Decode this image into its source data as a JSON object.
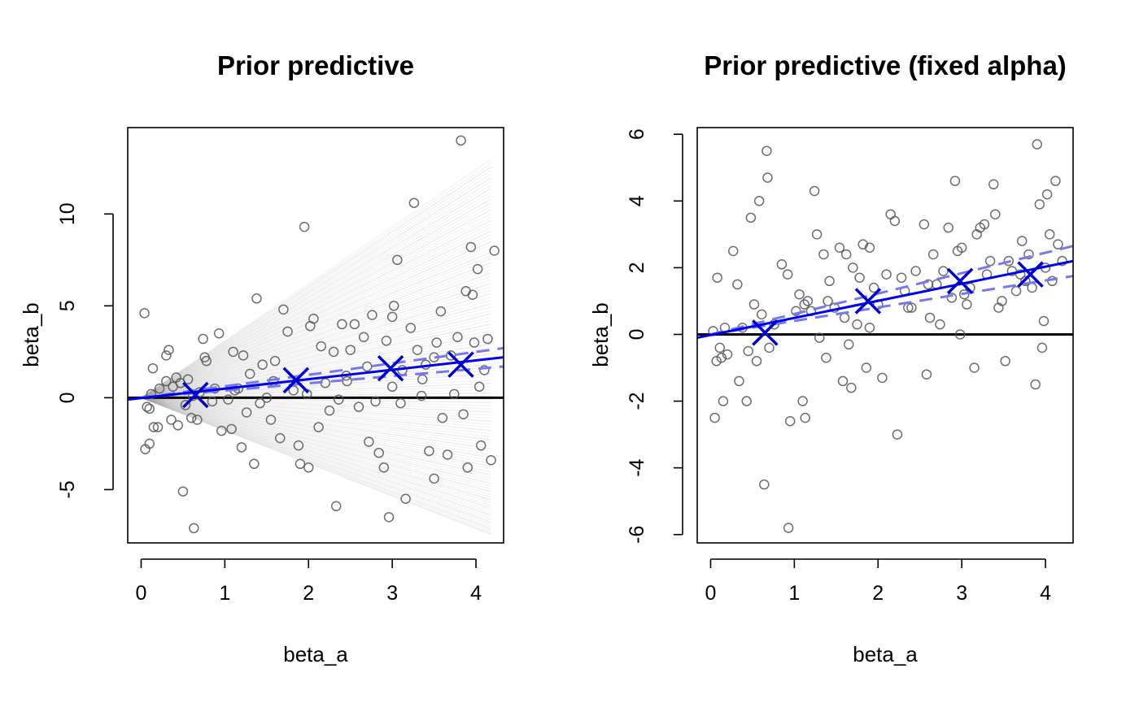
{
  "chart_data": [
    {
      "type": "scatter",
      "title": "Prior predictive",
      "xlabel": "beta_a",
      "ylabel": "beta_b",
      "xlim": [
        -0.16,
        4.33
      ],
      "ylim": [
        -7.9,
        14.7
      ],
      "xticks": [
        0,
        1,
        2,
        3,
        4
      ],
      "yticks": [
        -5,
        0,
        5,
        10
      ],
      "grid": false,
      "legend": "none",
      "colors": {
        "points": "#555555",
        "fit": "#0000ee",
        "band": "#7777ee",
        "marker": "#0000cc",
        "draws": "#999999",
        "zero": "#000000"
      },
      "points": [
        [
          0.04,
          4.6
        ],
        [
          0.07,
          -0.5
        ],
        [
          0.1,
          -0.6
        ],
        [
          0.05,
          -2.8
        ],
        [
          0.1,
          -2.5
        ],
        [
          0.12,
          0.2
        ],
        [
          0.14,
          1.6
        ],
        [
          0.15,
          -1.6
        ],
        [
          0.2,
          -1.6
        ],
        [
          0.22,
          0.5
        ],
        [
          0.3,
          2.3
        ],
        [
          0.3,
          0.9
        ],
        [
          0.33,
          2.6
        ],
        [
          0.36,
          -1.2
        ],
        [
          0.38,
          0.6
        ],
        [
          0.42,
          1.1
        ],
        [
          0.44,
          -1.5
        ],
        [
          0.47,
          0.8
        ],
        [
          0.5,
          -5.1
        ],
        [
          0.53,
          -0.4
        ],
        [
          0.56,
          1.0
        ],
        [
          0.6,
          -1.1
        ],
        [
          0.63,
          -7.1
        ],
        [
          0.67,
          -1.2
        ],
        [
          0.7,
          0.3
        ],
        [
          0.74,
          3.2
        ],
        [
          0.76,
          2.2
        ],
        [
          0.78,
          2.0
        ],
        [
          0.85,
          -0.2
        ],
        [
          0.93,
          3.5
        ],
        [
          0.96,
          -1.8
        ],
        [
          1.04,
          -0.1
        ],
        [
          1.08,
          -1.7
        ],
        [
          1.1,
          2.5
        ],
        [
          1.16,
          0.5
        ],
        [
          1.2,
          -2.7
        ],
        [
          1.22,
          2.3
        ],
        [
          1.26,
          -0.8
        ],
        [
          1.3,
          1.3
        ],
        [
          1.35,
          -3.6
        ],
        [
          1.38,
          5.4
        ],
        [
          1.45,
          1.8
        ],
        [
          1.5,
          0.0
        ],
        [
          1.55,
          -1.2
        ],
        [
          1.6,
          2.0
        ],
        [
          1.66,
          -2.2
        ],
        [
          1.7,
          4.8
        ],
        [
          1.75,
          3.6
        ],
        [
          1.82,
          0.4
        ],
        [
          1.88,
          -2.6
        ],
        [
          1.9,
          -3.6
        ],
        [
          1.95,
          9.3
        ],
        [
          2.0,
          -3.8
        ],
        [
          2.02,
          3.9
        ],
        [
          2.06,
          4.3
        ],
        [
          2.12,
          -1.6
        ],
        [
          2.15,
          2.8
        ],
        [
          2.2,
          0.8
        ],
        [
          2.25,
          -0.7
        ],
        [
          2.3,
          2.5
        ],
        [
          2.33,
          -5.9
        ],
        [
          2.4,
          4.0
        ],
        [
          2.46,
          0.9
        ],
        [
          2.5,
          2.6
        ],
        [
          2.55,
          4.0
        ],
        [
          2.6,
          -0.5
        ],
        [
          2.66,
          3.3
        ],
        [
          2.72,
          -2.4
        ],
        [
          2.76,
          4.5
        ],
        [
          2.8,
          -0.2
        ],
        [
          2.84,
          -3.0
        ],
        [
          2.9,
          -3.8
        ],
        [
          2.93,
          3.1
        ],
        [
          2.96,
          -6.5
        ],
        [
          3.0,
          4.4
        ],
        [
          3.02,
          5.0
        ],
        [
          3.06,
          7.5
        ],
        [
          3.1,
          -0.3
        ],
        [
          3.16,
          -5.5
        ],
        [
          3.22,
          3.8
        ],
        [
          3.26,
          10.6
        ],
        [
          3.3,
          2.6
        ],
        [
          3.35,
          0.1
        ],
        [
          3.4,
          1.8
        ],
        [
          3.44,
          -2.9
        ],
        [
          3.5,
          -4.4
        ],
        [
          3.53,
          3.0
        ],
        [
          3.58,
          4.7
        ],
        [
          3.6,
          -1.1
        ],
        [
          3.66,
          -3.1
        ],
        [
          3.7,
          2.3
        ],
        [
          3.74,
          0.2
        ],
        [
          3.78,
          3.3
        ],
        [
          3.82,
          14.0
        ],
        [
          3.85,
          -0.9
        ],
        [
          3.88,
          5.8
        ],
        [
          3.9,
          -3.8
        ],
        [
          3.94,
          8.2
        ],
        [
          3.98,
          3.0
        ],
        [
          4.02,
          7.0
        ],
        [
          4.06,
          -2.6
        ],
        [
          4.1,
          1.5
        ],
        [
          4.14,
          3.2
        ],
        [
          4.18,
          -3.4
        ],
        [
          4.22,
          8.0
        ],
        [
          3.96,
          5.6
        ],
        [
          3.12,
          1.5
        ],
        [
          2.45,
          1.2
        ],
        [
          1.58,
          0.9
        ],
        [
          0.88,
          0.5
        ],
        [
          3.36,
          1.0
        ],
        [
          2.7,
          1.7
        ],
        [
          1.98,
          0.2
        ],
        [
          1.12,
          0.4
        ],
        [
          4.04,
          0.6
        ],
        [
          3.5,
          2.2
        ],
        [
          2.36,
          -0.1
        ],
        [
          1.42,
          -0.3
        ],
        [
          0.62,
          0.1
        ],
        [
          3.0,
          0.6
        ]
      ],
      "fit_line": {
        "x": [
          -0.16,
          4.33
        ],
        "y": [
          -0.1,
          2.2
        ]
      },
      "band_upper": {
        "x": [
          0.0,
          4.33
        ],
        "y": [
          0.0,
          2.7
        ]
      },
      "band_lower": {
        "x": [
          0.0,
          4.33
        ],
        "y": [
          0.0,
          1.7
        ]
      },
      "x_markers": [
        [
          0.65,
          0.15
        ],
        [
          1.85,
          0.95
        ],
        [
          2.98,
          1.6
        ],
        [
          3.82,
          1.8
        ]
      ],
      "draws": {
        "count": 120,
        "x_end": 4.18,
        "slope_min": -1.78,
        "slope_max": 3.1
      },
      "hline": 0
    },
    {
      "type": "scatter",
      "title": "Prior predictive (fixed alpha)",
      "xlabel": "beta_a",
      "ylabel": "beta_b",
      "xlim": [
        -0.16,
        4.33
      ],
      "ylim": [
        -6.25,
        6.2
      ],
      "xticks": [
        0,
        1,
        2,
        3,
        4
      ],
      "yticks": [
        -6,
        -4,
        -2,
        0,
        2,
        4,
        6
      ],
      "grid": false,
      "legend": "none",
      "colors": {
        "points": "#555555",
        "fit": "#0000ee",
        "band": "#7777ee",
        "marker": "#0000cc",
        "zero": "#000000"
      },
      "points": [
        [
          0.03,
          0.1
        ],
        [
          0.05,
          -2.5
        ],
        [
          0.07,
          -0.8
        ],
        [
          0.08,
          1.7
        ],
        [
          0.11,
          -0.4
        ],
        [
          0.13,
          -0.7
        ],
        [
          0.15,
          -2.0
        ],
        [
          0.17,
          0.2
        ],
        [
          0.2,
          -0.6
        ],
        [
          0.27,
          2.5
        ],
        [
          0.32,
          1.5
        ],
        [
          0.34,
          -1.4
        ],
        [
          0.38,
          0.2
        ],
        [
          0.43,
          -2.0
        ],
        [
          0.45,
          -0.5
        ],
        [
          0.48,
          3.5
        ],
        [
          0.52,
          0.9
        ],
        [
          0.55,
          -0.8
        ],
        [
          0.58,
          4.0
        ],
        [
          0.61,
          0.6
        ],
        [
          0.64,
          -4.5
        ],
        [
          0.67,
          5.5
        ],
        [
          0.68,
          4.7
        ],
        [
          0.7,
          -0.4
        ],
        [
          0.85,
          2.1
        ],
        [
          0.92,
          1.8
        ],
        [
          0.93,
          -5.8
        ],
        [
          0.95,
          -2.6
        ],
        [
          1.02,
          0.7
        ],
        [
          1.06,
          1.2
        ],
        [
          1.1,
          -2.0
        ],
        [
          1.13,
          -2.5
        ],
        [
          1.16,
          1.0
        ],
        [
          1.2,
          0.7
        ],
        [
          1.24,
          4.3
        ],
        [
          1.27,
          3.0
        ],
        [
          1.3,
          -0.1
        ],
        [
          1.35,
          2.4
        ],
        [
          1.38,
          -0.7
        ],
        [
          1.42,
          1.6
        ],
        [
          1.48,
          0.8
        ],
        [
          1.54,
          2.6
        ],
        [
          1.58,
          -1.4
        ],
        [
          1.62,
          2.4
        ],
        [
          1.65,
          -0.3
        ],
        [
          1.68,
          -1.6
        ],
        [
          1.7,
          2.0
        ],
        [
          1.75,
          0.3
        ],
        [
          1.78,
          1.7
        ],
        [
          1.82,
          2.7
        ],
        [
          1.86,
          -1.0
        ],
        [
          1.9,
          2.6
        ],
        [
          1.95,
          1.4
        ],
        [
          2.0,
          0.9
        ],
        [
          2.05,
          -1.3
        ],
        [
          2.1,
          1.8
        ],
        [
          2.15,
          3.6
        ],
        [
          2.2,
          3.4
        ],
        [
          2.23,
          -3.0
        ],
        [
          2.28,
          1.7
        ],
        [
          2.32,
          1.3
        ],
        [
          2.36,
          0.8
        ],
        [
          2.45,
          1.9
        ],
        [
          2.55,
          3.3
        ],
        [
          2.58,
          -1.2
        ],
        [
          2.62,
          0.5
        ],
        [
          2.66,
          2.4
        ],
        [
          2.7,
          1.5
        ],
        [
          2.74,
          0.3
        ],
        [
          2.78,
          1.9
        ],
        [
          2.84,
          3.2
        ],
        [
          2.88,
          1.1
        ],
        [
          2.92,
          4.6
        ],
        [
          2.95,
          2.5
        ],
        [
          2.98,
          0.0
        ],
        [
          3.03,
          1.2
        ],
        [
          3.06,
          0.9
        ],
        [
          3.1,
          1.4
        ],
        [
          3.15,
          -1.0
        ],
        [
          3.18,
          3.0
        ],
        [
          3.22,
          3.2
        ],
        [
          3.27,
          3.3
        ],
        [
          3.3,
          1.8
        ],
        [
          3.34,
          2.2
        ],
        [
          3.38,
          4.5
        ],
        [
          3.4,
          3.6
        ],
        [
          3.44,
          0.8
        ],
        [
          3.48,
          1.0
        ],
        [
          3.52,
          -0.8
        ],
        [
          3.56,
          2.2
        ],
        [
          3.6,
          1.9
        ],
        [
          3.65,
          1.3
        ],
        [
          3.72,
          2.8
        ],
        [
          3.76,
          1.6
        ],
        [
          3.8,
          2.4
        ],
        [
          3.84,
          1.4
        ],
        [
          3.88,
          -1.5
        ],
        [
          3.9,
          5.7
        ],
        [
          3.93,
          3.9
        ],
        [
          3.96,
          -0.4
        ],
        [
          3.98,
          0.4
        ],
        [
          4.0,
          2.0
        ],
        [
          4.02,
          4.2
        ],
        [
          4.05,
          3.0
        ],
        [
          4.08,
          1.6
        ],
        [
          4.12,
          4.6
        ],
        [
          4.15,
          2.7
        ],
        [
          4.2,
          2.2
        ],
        [
          1.12,
          0.9
        ],
        [
          1.4,
          1.0
        ],
        [
          2.4,
          0.8
        ],
        [
          3.0,
          2.6
        ],
        [
          0.76,
          0.3
        ],
        [
          1.6,
          0.5
        ],
        [
          2.6,
          1.5
        ],
        [
          3.7,
          1.8
        ],
        [
          1.9,
          0.2
        ]
      ],
      "fit_line": {
        "x": [
          -0.16,
          4.33
        ],
        "y": [
          -0.1,
          2.2
        ]
      },
      "band_upper": {
        "x": [
          0.0,
          4.33
        ],
        "y": [
          0.0,
          2.65
        ]
      },
      "band_lower": {
        "x": [
          0.0,
          4.33
        ],
        "y": [
          0.0,
          1.75
        ]
      },
      "x_markers": [
        [
          0.65,
          0.05
        ],
        [
          1.88,
          1.0
        ],
        [
          2.98,
          1.6
        ],
        [
          3.82,
          1.8
        ]
      ],
      "hline": 0
    }
  ]
}
